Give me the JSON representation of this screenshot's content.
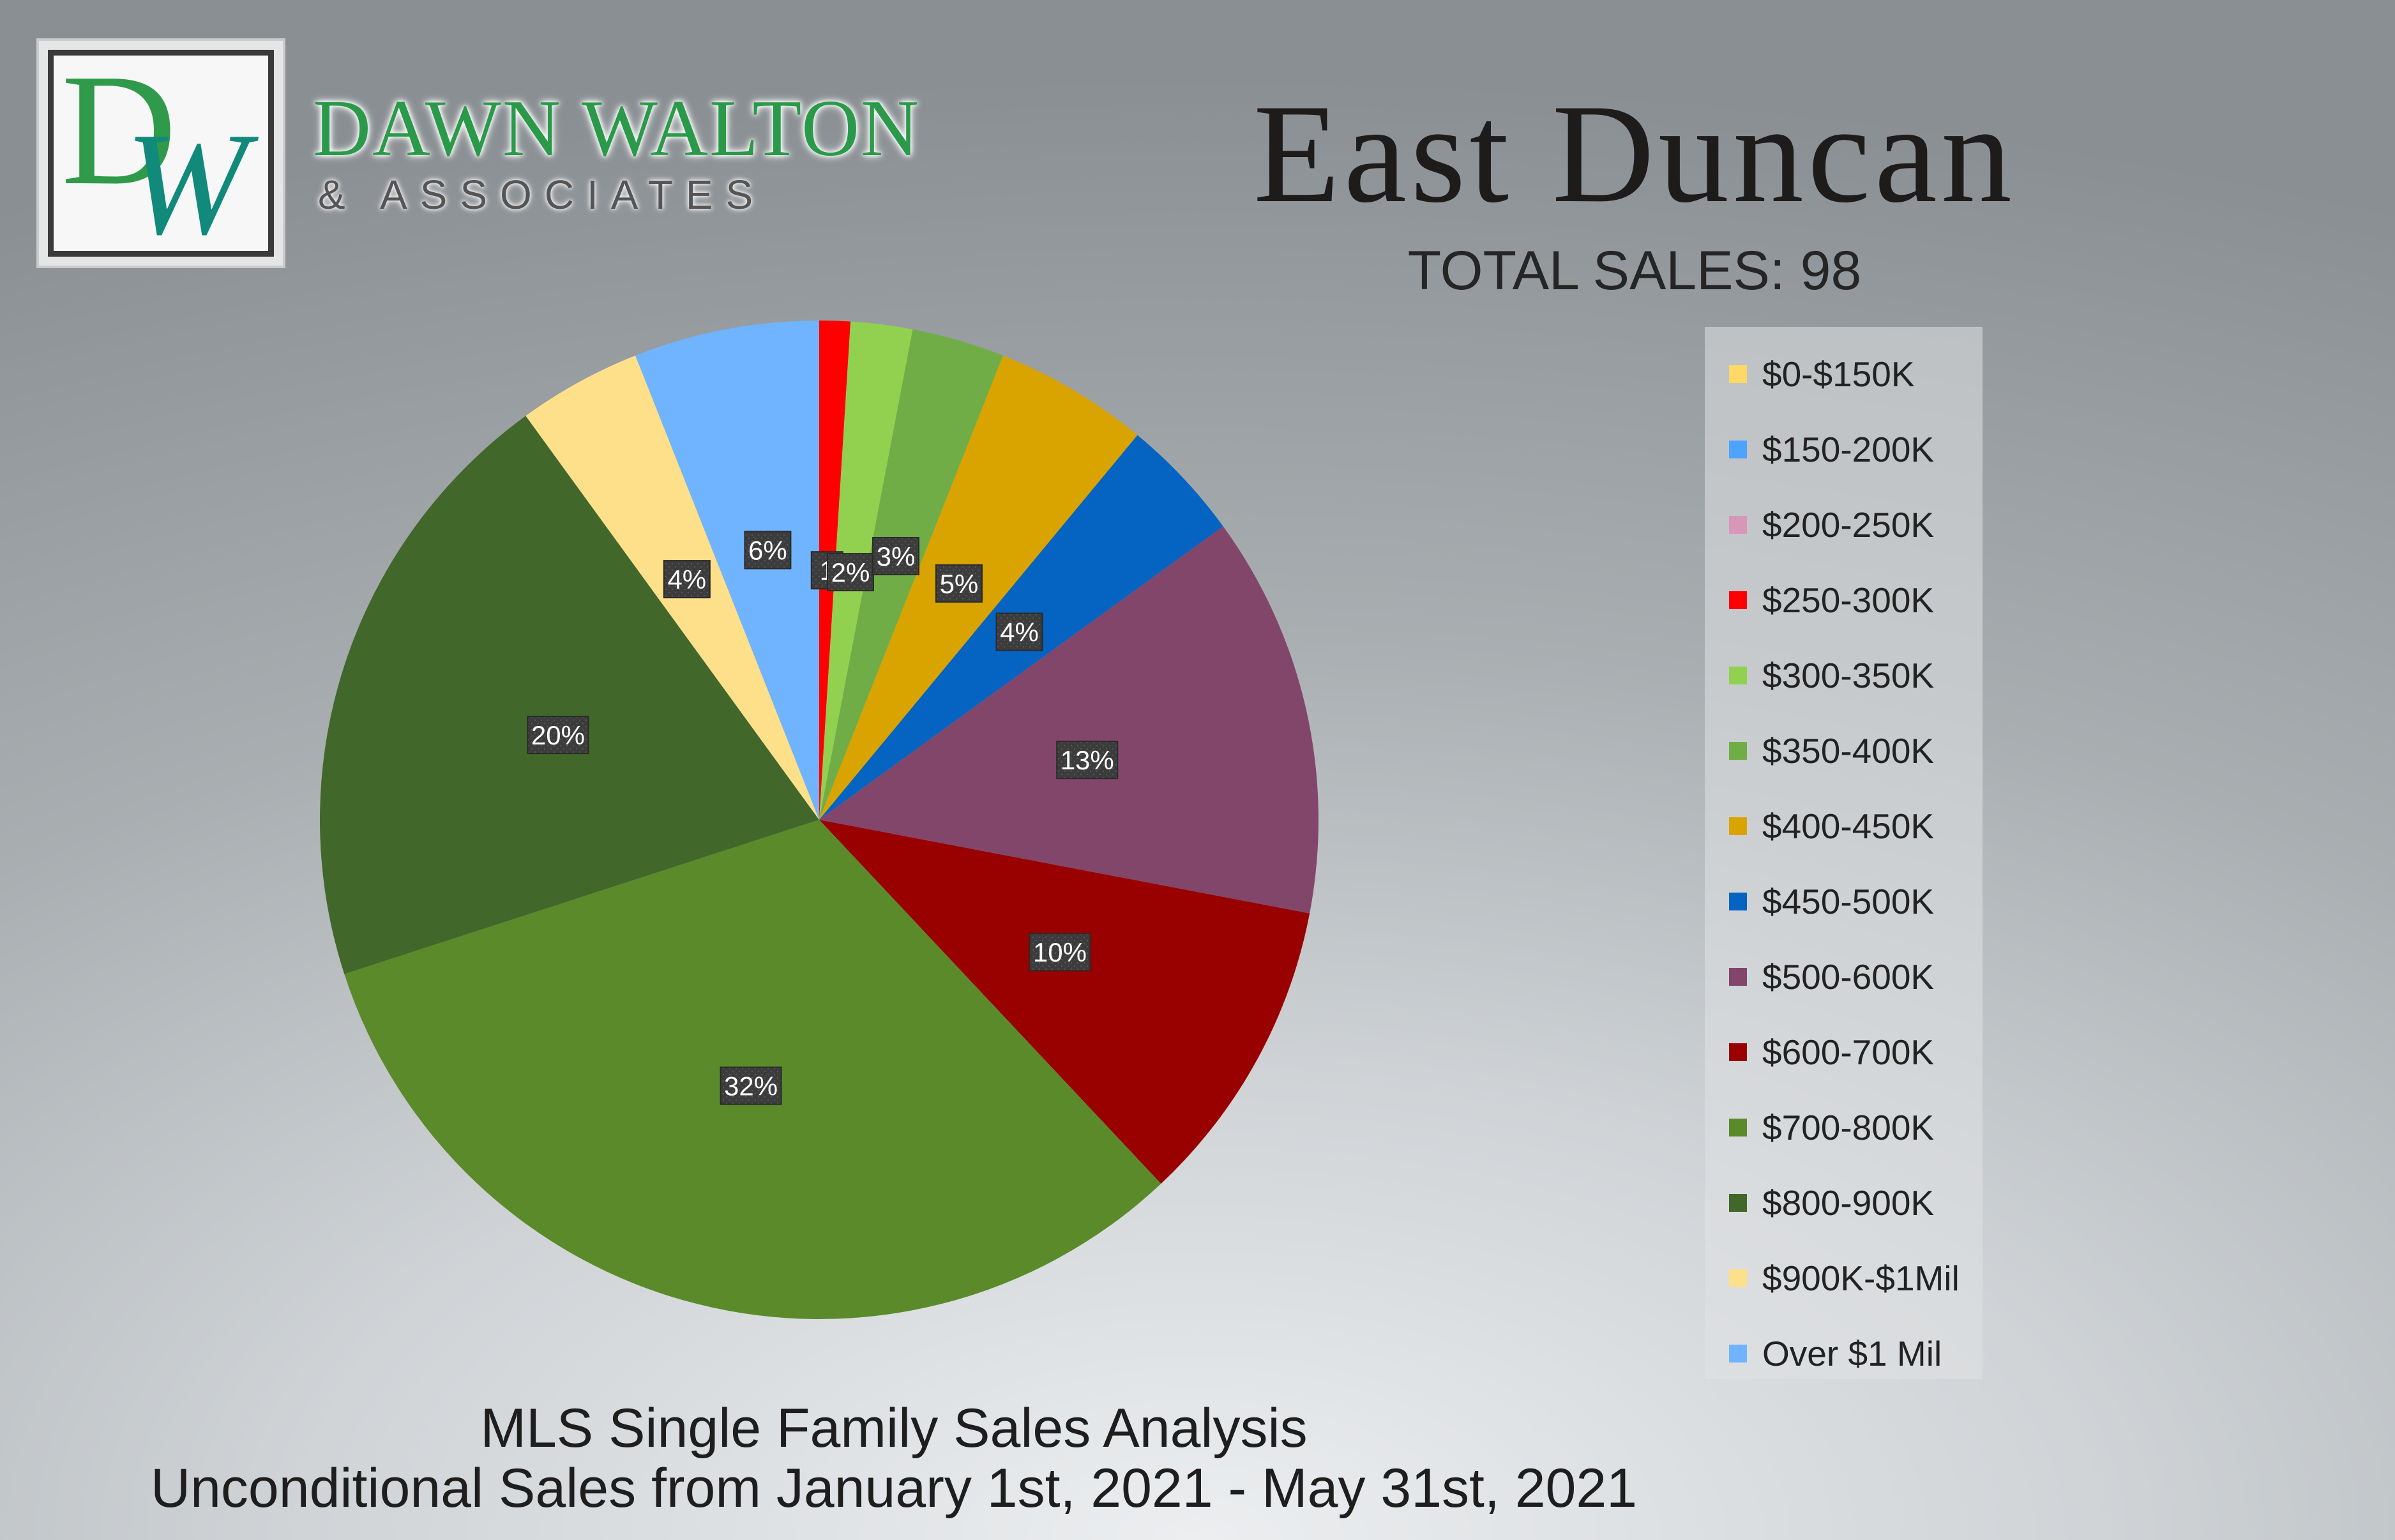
{
  "brand": {
    "logo_letters": "DW",
    "name": "DAWN WALTON",
    "subname": "& ASSOCIATES"
  },
  "header": {
    "title": "East Duncan",
    "subtitle": "TOTAL SALES: 98"
  },
  "footer": {
    "line1": "MLS Single Family Sales Analysis",
    "line2": "Unconditional Sales from January 1st, 2021 - May 31st, 2021"
  },
  "chart_data": {
    "type": "pie",
    "title": "East Duncan",
    "subtitle": "TOTAL SALES: 98",
    "legend_position": "right",
    "start_angle_deg": 0,
    "direction": "clockwise",
    "slices": [
      {
        "label": "$0-$150K",
        "value": 0,
        "percent_label": "",
        "color": "#ffd966"
      },
      {
        "label": "$150-200K",
        "value": 0,
        "percent_label": "",
        "color": "#4da3ff"
      },
      {
        "label": "$200-250K",
        "value": 0,
        "percent_label": "",
        "color": "#d896b8"
      },
      {
        "label": "$250-300K",
        "value": 1,
        "percent_label": "1",
        "color": "#ff0000"
      },
      {
        "label": "$300-350K",
        "value": 2,
        "percent_label": "2%",
        "color": "#92d050"
      },
      {
        "label": "$350-400K",
        "value": 3,
        "percent_label": "3%",
        "color": "#70ad47"
      },
      {
        "label": "$400-450K",
        "value": 5,
        "percent_label": "5%",
        "color": "#d9a300"
      },
      {
        "label": "$450-500K",
        "value": 4,
        "percent_label": "4%",
        "color": "#0563c1"
      },
      {
        "label": "$500-600K",
        "value": 13,
        "percent_label": "13%",
        "color": "#82466a"
      },
      {
        "label": "$600-700K",
        "value": 10,
        "percent_label": "10%",
        "color": "#990000"
      },
      {
        "label": "$700-800K",
        "value": 32,
        "percent_label": "32%",
        "color": "#5b8a2a"
      },
      {
        "label": "$800-900K",
        "value": 20,
        "percent_label": "20%",
        "color": "#42672a"
      },
      {
        "label": "$900K-$1Mil",
        "value": 4,
        "percent_label": "4%",
        "color": "#ffe08a"
      },
      {
        "label": "Over $1 Mil",
        "value": 6,
        "percent_label": "6%",
        "color": "#70b4ff"
      }
    ]
  }
}
